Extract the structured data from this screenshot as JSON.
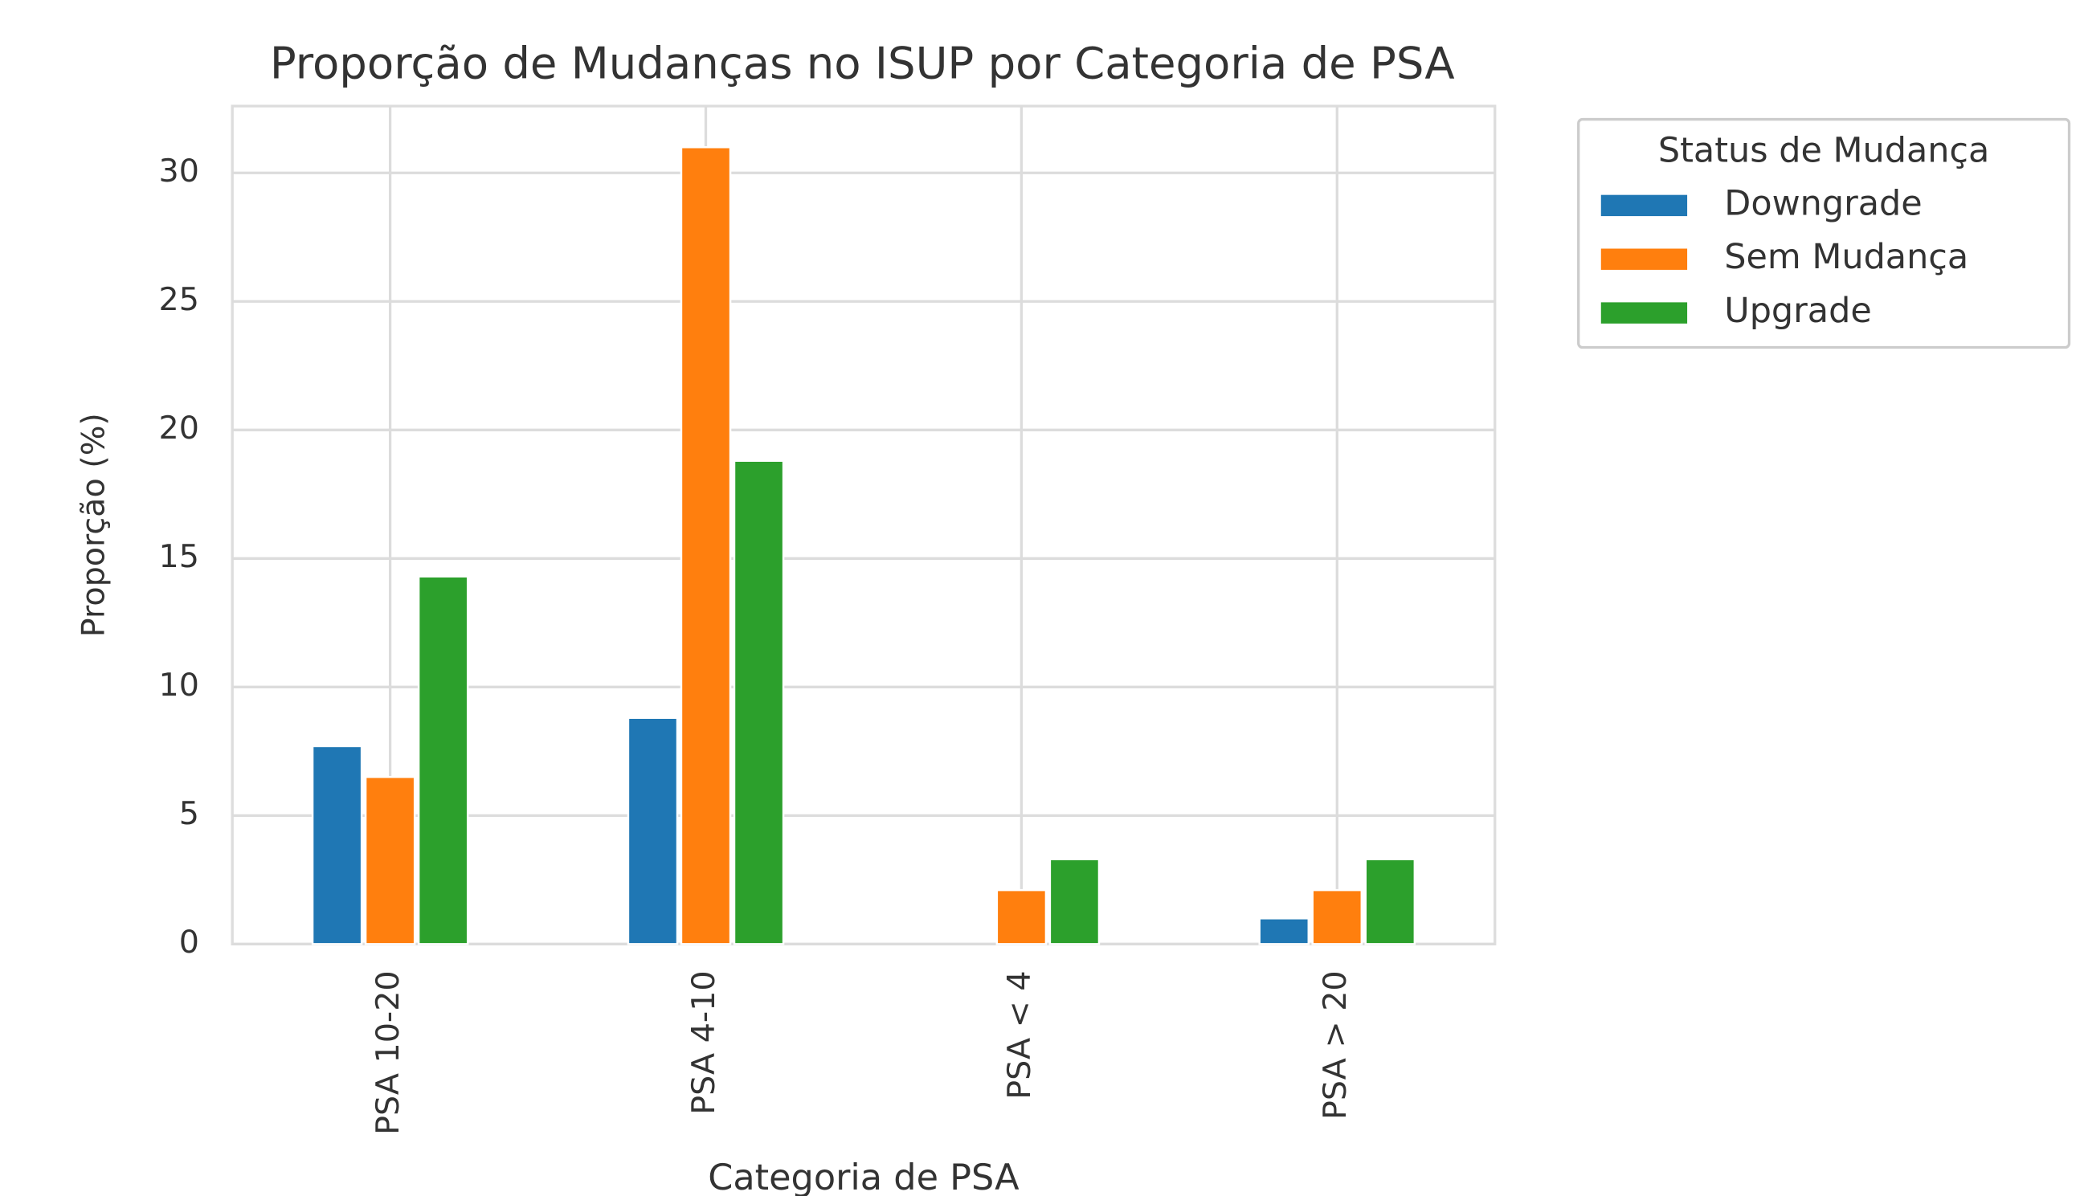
{
  "chart_data": {
    "type": "bar",
    "title": "Proporção de Mudanças no ISUP por Categoria de PSA",
    "xlabel": "Categoria de PSA",
    "ylabel": "Proporção (%)",
    "categories": [
      "PSA 10-20",
      "PSA 4-10",
      "PSA < 4",
      "PSA > 20"
    ],
    "series": [
      {
        "name": "Downgrade",
        "color": "#1f77b4",
        "values": [
          7.7,
          8.8,
          0,
          1.0
        ]
      },
      {
        "name": "Sem Mudança",
        "color": "#ff7f0e",
        "values": [
          6.5,
          31.0,
          2.1,
          2.1
        ]
      },
      {
        "name": "Upgrade",
        "color": "#2ca02c",
        "values": [
          14.3,
          18.8,
          3.3,
          3.3
        ]
      }
    ],
    "legend_title": "Status de Mudança",
    "legend_position": "outside upper right",
    "ylim": [
      0,
      32.6
    ],
    "yticks": [
      0,
      5,
      10,
      15,
      20,
      25,
      30
    ],
    "grid": true
  }
}
